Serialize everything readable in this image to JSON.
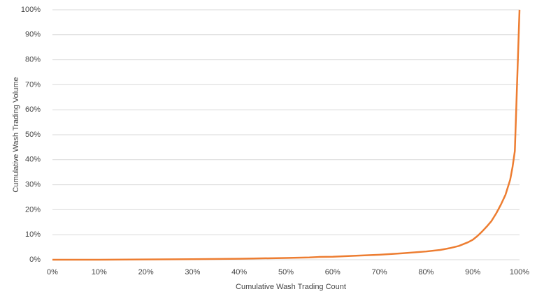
{
  "chart_data": {
    "type": "line",
    "x_label": "Cumulative Wash Trading Count",
    "y_label": "Cumulative Wash Trading Volume",
    "x": [
      0,
      10,
      20,
      30,
      40,
      50,
      55,
      57,
      60,
      65,
      70,
      75,
      80,
      83,
      85,
      87,
      89,
      90,
      91,
      92,
      93,
      94,
      95,
      96,
      97,
      98,
      98.5,
      99,
      100
    ],
    "series": [
      {
        "color": "#ed7d31",
        "values": [
          0,
          0,
          0.1,
          0.2,
          0.4,
          0.7,
          0.9,
          1.1,
          1.2,
          1.6,
          2.0,
          2.6,
          3.3,
          3.9,
          4.6,
          5.5,
          7,
          8,
          9.5,
          11.3,
          13.3,
          15.5,
          18.5,
          22,
          26,
          32,
          37,
          43.5,
          100
        ]
      }
    ],
    "xlim": [
      0,
      100
    ],
    "ylim": [
      0,
      100
    ],
    "xticks": [
      {
        "value": 0,
        "label": "0%"
      },
      {
        "value": 10,
        "label": "10%"
      },
      {
        "value": 20,
        "label": "20%"
      },
      {
        "value": 30,
        "label": "30%"
      },
      {
        "value": 40,
        "label": "40%"
      },
      {
        "value": 50,
        "label": "50%"
      },
      {
        "value": 60,
        "label": "60%"
      },
      {
        "value": 70,
        "label": "70%"
      },
      {
        "value": 80,
        "label": "80%"
      },
      {
        "value": 90,
        "label": "90%"
      },
      {
        "value": 100,
        "label": "100%"
      }
    ],
    "yticks": [
      {
        "value": 0,
        "label": "0%"
      },
      {
        "value": 10,
        "label": "10%"
      },
      {
        "value": 20,
        "label": "20%"
      },
      {
        "value": 30,
        "label": "30%"
      },
      {
        "value": 40,
        "label": "40%"
      },
      {
        "value": 50,
        "label": "50%"
      },
      {
        "value": 60,
        "label": "60%"
      },
      {
        "value": 70,
        "label": "70%"
      },
      {
        "value": 80,
        "label": "80%"
      },
      {
        "value": 90,
        "label": "90%"
      },
      {
        "value": 100,
        "label": "100%"
      }
    ],
    "grid": true
  }
}
